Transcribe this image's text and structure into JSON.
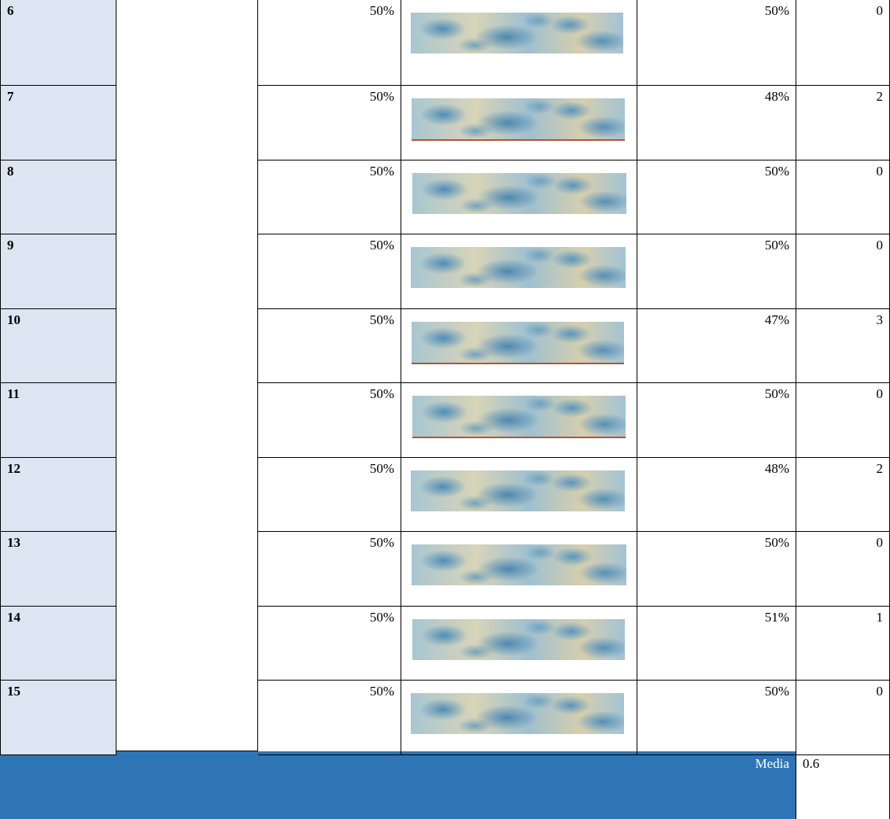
{
  "table": {
    "rows": [
      [
        "6",
        "50%",
        "50%",
        "0"
      ],
      [
        "7",
        "50%",
        "48%",
        "2"
      ],
      [
        "8",
        "50%",
        "50%",
        "0"
      ],
      [
        "9",
        "50%",
        "50%",
        "0"
      ],
      [
        "10",
        "50%",
        "47%",
        "3"
      ],
      [
        "11",
        "50%",
        "50%",
        "0"
      ],
      [
        "12",
        "50%",
        "48%",
        "2"
      ],
      [
        "13",
        "50%",
        "50%",
        "0"
      ],
      [
        "14",
        "50%",
        "51%",
        "1"
      ],
      [
        "15",
        "50%",
        "50%",
        "0"
      ]
    ]
  },
  "footer": {
    "label": "Media",
    "value": "0.6"
  }
}
